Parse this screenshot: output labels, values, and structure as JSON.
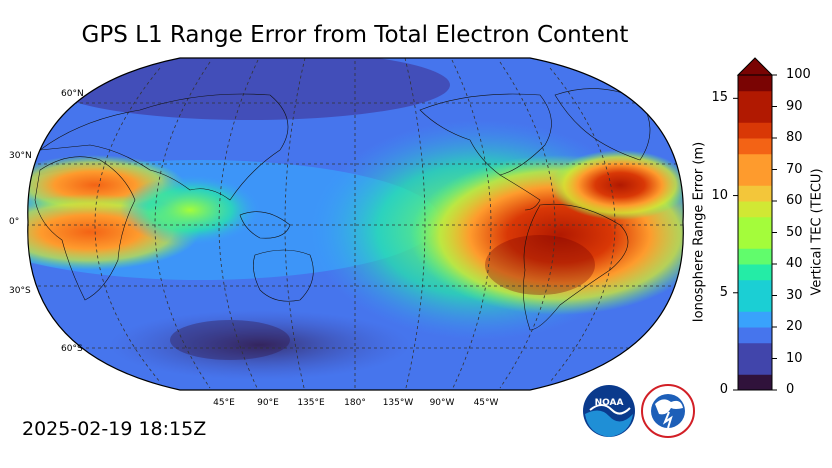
{
  "title": "GPS L1 Range Error from Total Electron Content",
  "timestamp": "2025-02-19 18:15Z",
  "map": {
    "projection": "robinson",
    "central_longitude": 180,
    "lat_labels": [
      "60°N",
      "30°N",
      "0°",
      "30°S",
      "60°S"
    ],
    "lon_labels": [
      "45°E",
      "90°E",
      "135°E",
      "180°",
      "135°W",
      "90°W",
      "45°W"
    ]
  },
  "colorbar": {
    "left_label": "Ionosphere Range Error (m)",
    "right_label": "Vertical TEC (TECU)",
    "left_ticks": [
      "0",
      "5",
      "10",
      "15"
    ],
    "right_ticks": [
      "0",
      "10",
      "20",
      "30",
      "40",
      "50",
      "60",
      "70",
      "80",
      "90",
      "100"
    ],
    "colormap": [
      "#30123b",
      "#4145ab",
      "#4675ed",
      "#39a2fc",
      "#1bcfd4",
      "#24eca6",
      "#61fc6c",
      "#a4fc3b",
      "#d1e834",
      "#f3c63a",
      "#fe9b2d",
      "#f36315",
      "#d93806",
      "#b11901",
      "#7a0403"
    ],
    "extend": "max"
  },
  "logos": {
    "noaa_text": "NOAA",
    "nws_text": "NATIONAL WEATHER SERVICE"
  }
}
